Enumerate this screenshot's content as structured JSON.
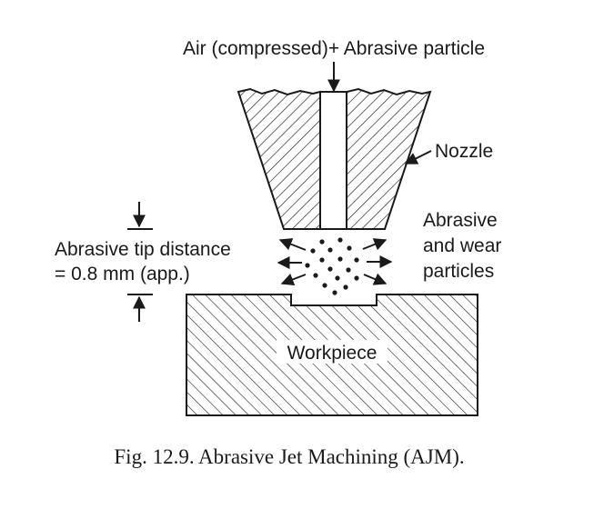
{
  "labels": {
    "inlet": "Air (compressed)+ Abrasive particle",
    "nozzle": "Nozzle",
    "particles_line1": "Abrasive",
    "particles_line2": "and wear",
    "particles_line3": "particles",
    "distance_line1": "Abrasive tip distance",
    "distance_line2": "= 0.8 mm (app.)",
    "workpiece": "Workpiece"
  },
  "caption": "Fig. 12.9. Abrasive Jet Machining (AJM).",
  "colors": {
    "ink": "#1a1a1a",
    "background": "#ffffff"
  }
}
